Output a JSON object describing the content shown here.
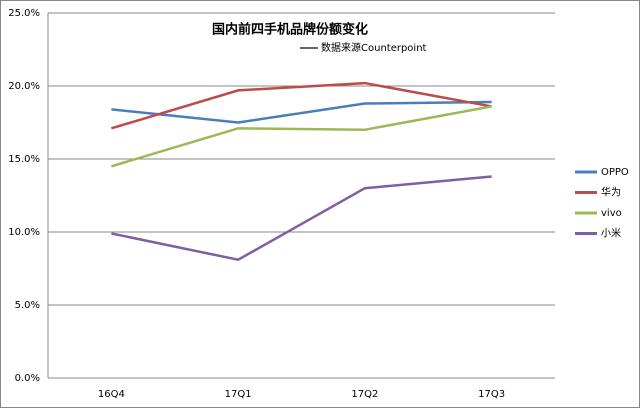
{
  "chart_data": {
    "type": "line",
    "title": "国内前四手机品牌份额变化",
    "annotation": "数据来源Counterpoint",
    "categories": [
      "16Q4",
      "17Q1",
      "17Q2",
      "17Q3"
    ],
    "series": [
      {
        "name": "OPPO",
        "color": "#4a7ebb",
        "values": [
          18.4,
          17.5,
          18.8,
          18.9
        ]
      },
      {
        "name": "华为",
        "color": "#be4b48",
        "values": [
          17.1,
          19.7,
          20.2,
          18.6
        ]
      },
      {
        "name": "vivo",
        "color": "#98b954",
        "values": [
          14.5,
          17.1,
          17.0,
          18.6
        ]
      },
      {
        "name": "小米",
        "color": "#7d60a0",
        "values": [
          9.9,
          8.1,
          13.0,
          13.8
        ]
      }
    ],
    "ylim": [
      0,
      25
    ],
    "yticks": [
      {
        "value": 0,
        "label": "0.0%"
      },
      {
        "value": 5,
        "label": "5.0%"
      },
      {
        "value": 10,
        "label": "10.0%"
      },
      {
        "value": 15,
        "label": "15.0%"
      },
      {
        "value": 20,
        "label": "20.0%"
      },
      {
        "value": 25,
        "label": "25.0%"
      }
    ],
    "grid": true,
    "legend": "right"
  }
}
